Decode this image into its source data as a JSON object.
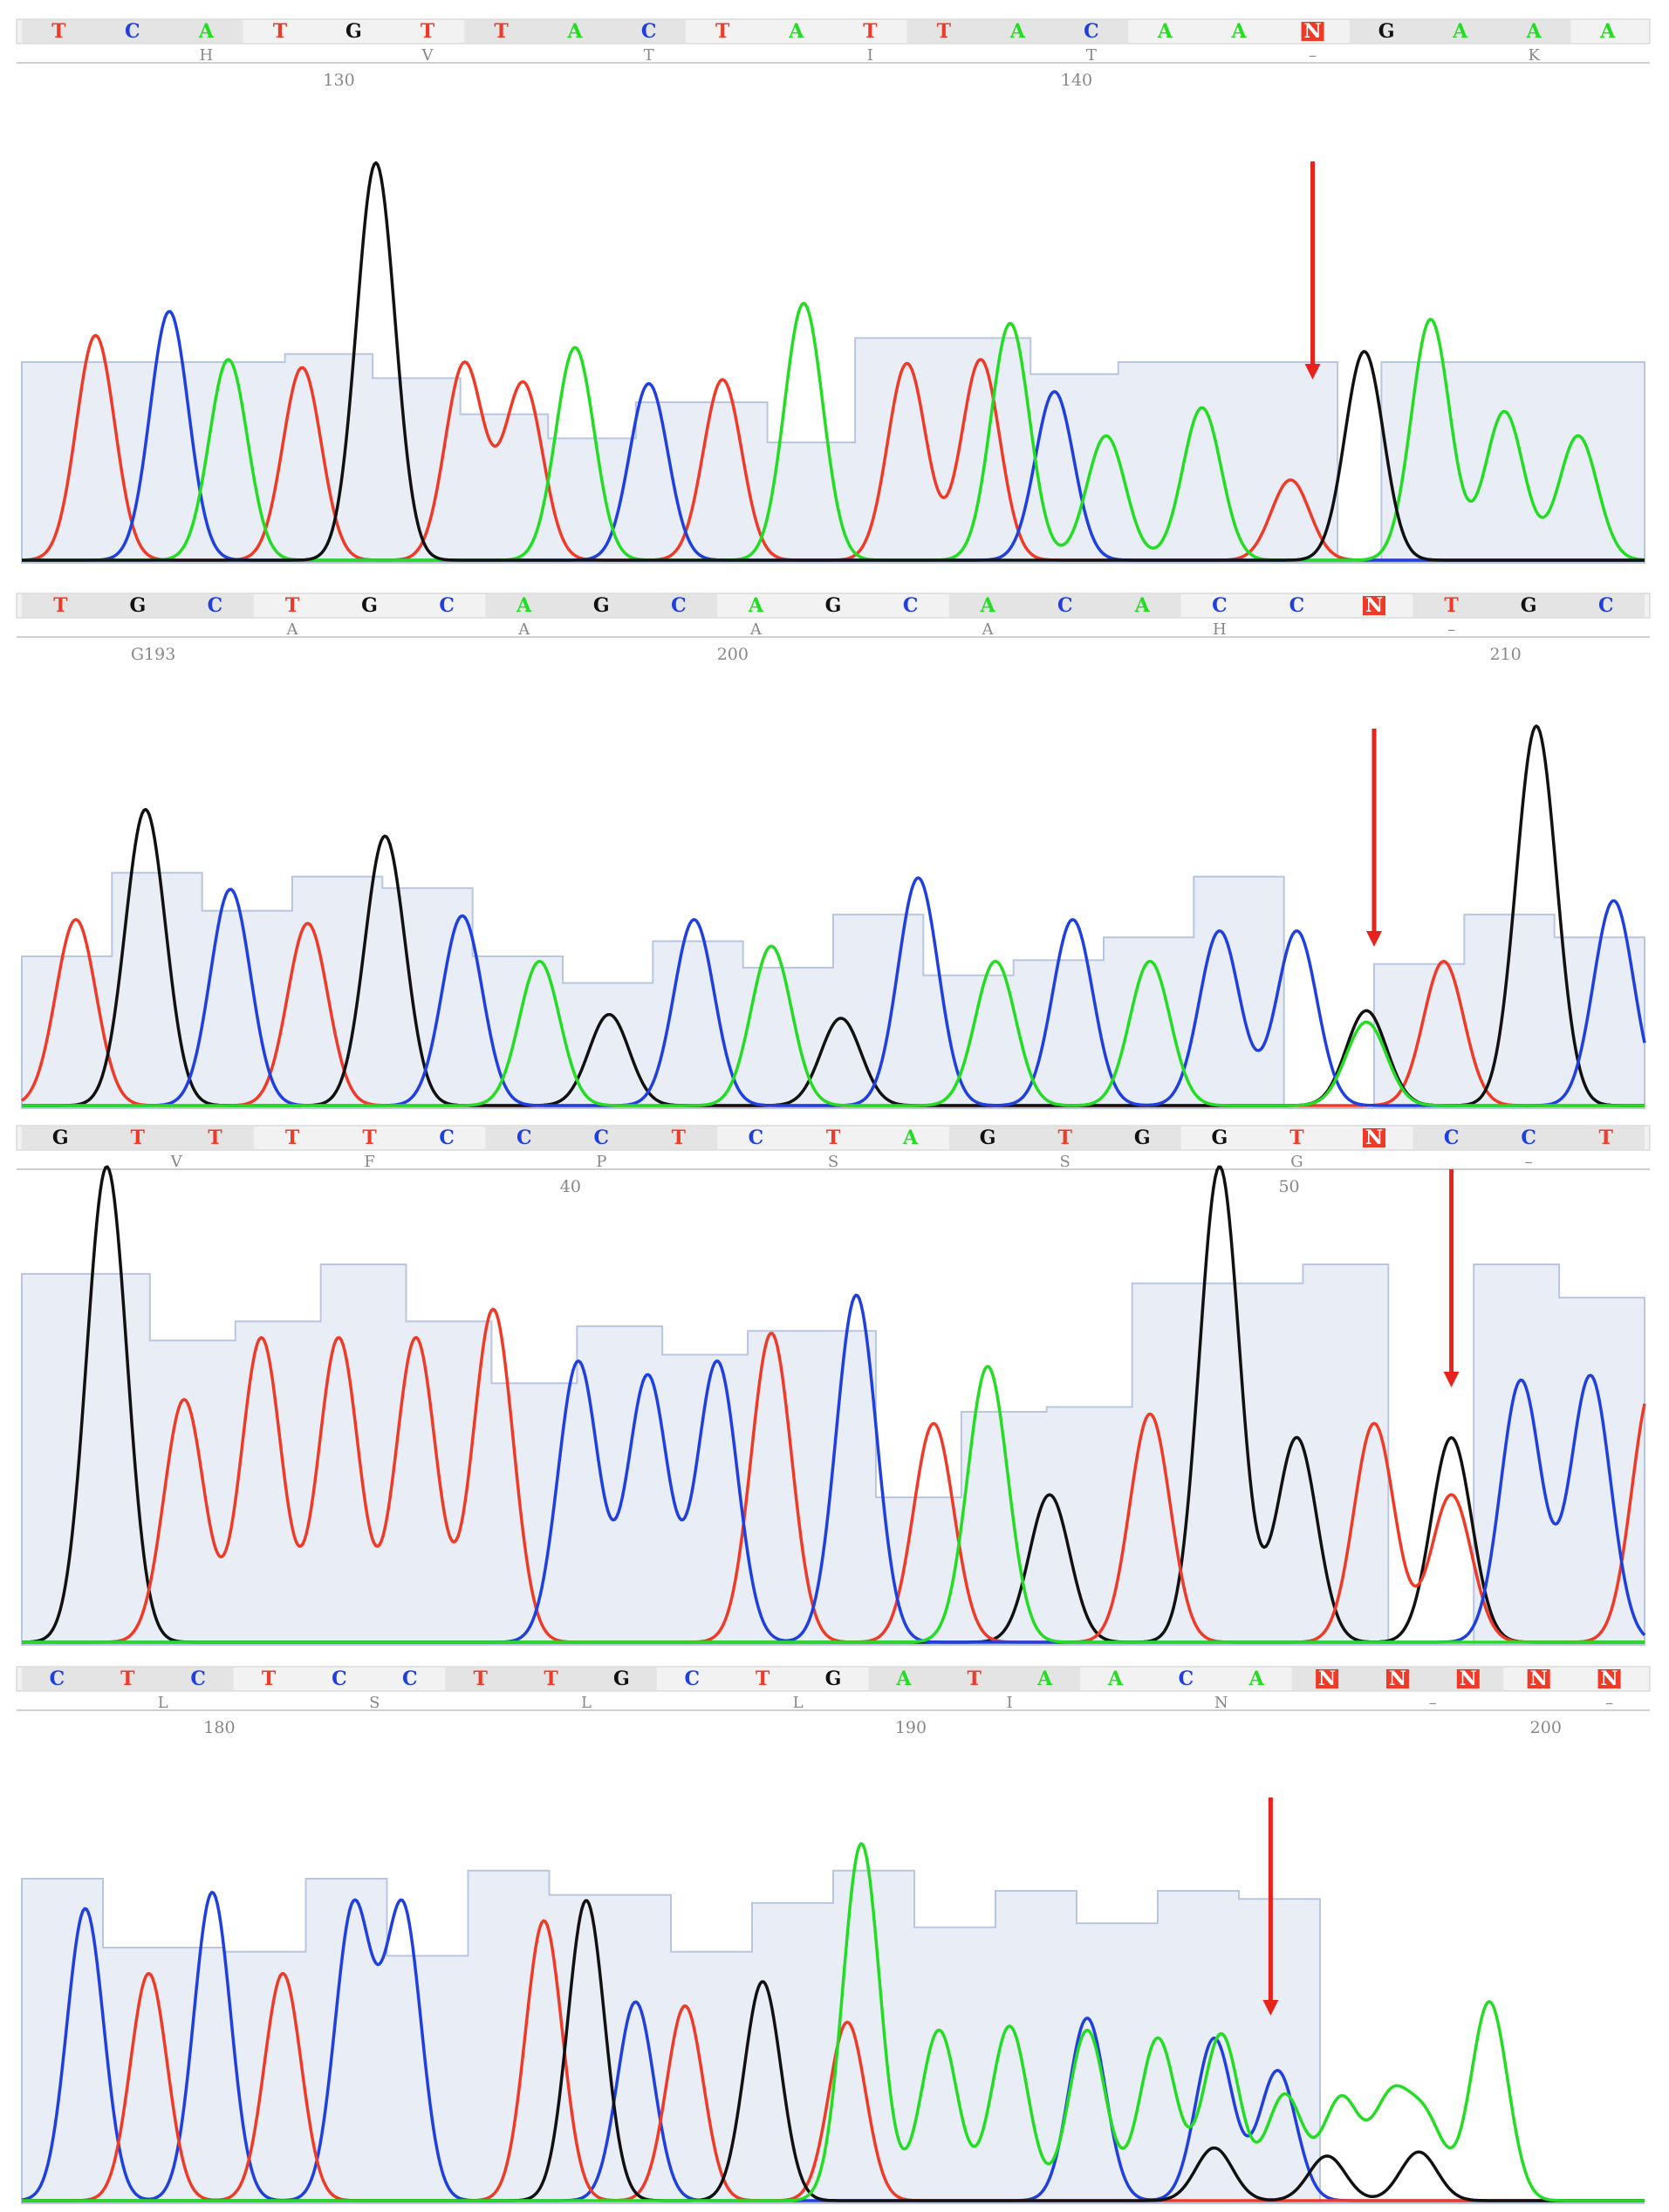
{
  "colors": {
    "A": "#22dd22",
    "C": "#1f3fdf",
    "G": "#111111",
    "T": "#f03a28",
    "N_fill": "#f03a28",
    "N_text": "#ffffff",
    "quality_fill": "#e9edf5",
    "quality_stroke": "#b9c6e2",
    "arrow": "#e8231b",
    "header_bg": "#f2f2f2",
    "header_alt_bg": "#e4e4e4",
    "label_text": "#888888"
  },
  "chart_data": [
    {
      "type": "line",
      "panel": "1",
      "bases": [
        "T",
        "C",
        "A",
        "T",
        "G",
        "T",
        "T",
        "A",
        "C",
        "T",
        "A",
        "T",
        "T",
        "A",
        "C",
        "A",
        "A",
        "N",
        "G",
        "A",
        "A",
        "A"
      ],
      "aa": [
        {
          "base_index": 2,
          "aa": "H"
        },
        {
          "base_index": 5,
          "aa": "V"
        },
        {
          "base_index": 8,
          "aa": "T"
        },
        {
          "base_index": 11,
          "aa": "I"
        },
        {
          "base_index": 14,
          "aa": "T"
        },
        {
          "base_index": 17,
          "aa": "–"
        },
        {
          "base_index": 20,
          "aa": "K"
        }
      ],
      "ticks": [
        {
          "base_index": 3.8,
          "label": "130"
        },
        {
          "base_index": 13.8,
          "label": "140"
        }
      ],
      "quality": [
        50,
        50,
        50,
        50,
        50,
        50,
        52,
        52,
        46,
        46,
        37,
        37,
        31,
        31,
        40,
        40,
        40,
        30,
        30,
        56,
        56,
        56,
        56,
        47,
        47,
        50,
        50,
        50,
        50,
        50,
        0,
        50,
        50,
        50,
        50,
        50,
        50
      ],
      "series": [
        {
          "base": "T",
          "peaks": [
            [
              0.5,
              56
            ],
            [
              3.3,
              48
            ],
            [
              5.5,
              49
            ],
            [
              6.3,
              44
            ],
            [
              9,
              45
            ],
            [
              11.5,
              49
            ],
            [
              12.5,
              50
            ],
            [
              16.7,
              20
            ]
          ]
        },
        {
          "base": "C",
          "peaks": [
            [
              1.5,
              62
            ],
            [
              8,
              44
            ],
            [
              13.5,
              42
            ]
          ]
        },
        {
          "base": "A",
          "peaks": [
            [
              2.3,
              50
            ],
            [
              7,
              53
            ],
            [
              10.1,
              64
            ],
            [
              12.9,
              59
            ],
            [
              14.2,
              31
            ],
            [
              15.5,
              38
            ],
            [
              18.6,
              60
            ],
            [
              19.6,
              37
            ],
            [
              20.6,
              31
            ]
          ]
        },
        {
          "base": "G",
          "peaks": [
            [
              4.3,
              99
            ],
            [
              17.7,
              52
            ]
          ]
        }
      ],
      "arrow_base_index": 17
    },
    {
      "type": "line",
      "panel": "2",
      "bases": [
        "T",
        "G",
        "C",
        "T",
        "G",
        "C",
        "A",
        "G",
        "C",
        "A",
        "G",
        "C",
        "A",
        "C",
        "A",
        "C",
        "C",
        "N",
        "T",
        "G",
        "C"
      ],
      "aa": [
        {
          "base_index": 3,
          "aa": "A"
        },
        {
          "base_index": 6,
          "aa": "A"
        },
        {
          "base_index": 9,
          "aa": "A"
        },
        {
          "base_index": 12,
          "aa": "A"
        },
        {
          "base_index": 15,
          "aa": "H"
        },
        {
          "base_index": 18,
          "aa": "–"
        },
        {
          "base_index": 21,
          "aa": "–"
        }
      ],
      "ticks": [
        {
          "base_index": 1.2,
          "label": "G193"
        },
        {
          "base_index": 8.7,
          "label": "200"
        },
        {
          "base_index": 18.7,
          "label": "210"
        }
      ],
      "quality": [
        40,
        40,
        62,
        62,
        52,
        52,
        61,
        61,
        58,
        58,
        40,
        40,
        33,
        33,
        44,
        44,
        37,
        37,
        51,
        51,
        35,
        35,
        39,
        39,
        45,
        45,
        61,
        61,
        0,
        0,
        38,
        38,
        51,
        51,
        45,
        45
      ],
      "series": [
        {
          "base": "T",
          "peaks": [
            [
              0.2,
              49
            ],
            [
              3.2,
              48
            ],
            [
              17.9,
              38
            ]
          ]
        },
        {
          "base": "G",
          "peaks": [
            [
              1.1,
              78
            ],
            [
              4.2,
              71
            ],
            [
              7.1,
              24
            ],
            [
              10.1,
              23
            ],
            [
              16.9,
              25
            ],
            [
              19.1,
              100
            ]
          ]
        },
        {
          "base": "C",
          "peaks": [
            [
              2.2,
              57
            ],
            [
              5.2,
              50
            ],
            [
              8.2,
              49
            ],
            [
              11.1,
              60
            ],
            [
              13.1,
              49
            ],
            [
              15.0,
              46
            ],
            [
              16.0,
              46
            ],
            [
              20.1,
              54
            ]
          ]
        },
        {
          "base": "A",
          "peaks": [
            [
              6.2,
              38
            ],
            [
              9.2,
              42
            ],
            [
              12.1,
              38
            ],
            [
              14.1,
              38
            ],
            [
              16.9,
              22
            ]
          ]
        }
      ],
      "arrow_base_index": 17
    },
    {
      "type": "line",
      "panel": "3",
      "bases": [
        "G",
        "T",
        "T",
        "T",
        "T",
        "C",
        "C",
        "C",
        "T",
        "C",
        "T",
        "A",
        "G",
        "T",
        "G",
        "G",
        "T",
        "N",
        "C",
        "C",
        "T"
      ],
      "aa": [
        {
          "base_index": 1.5,
          "aa": "V"
        },
        {
          "base_index": 4,
          "aa": "F"
        },
        {
          "base_index": 7,
          "aa": "P"
        },
        {
          "base_index": 10,
          "aa": "S"
        },
        {
          "base_index": 13,
          "aa": "S"
        },
        {
          "base_index": 16,
          "aa": "G"
        },
        {
          "base_index": 19,
          "aa": "–"
        }
      ],
      "ticks": [
        {
          "base_index": 6.6,
          "label": "40"
        },
        {
          "base_index": 15.9,
          "label": "50"
        }
      ],
      "quality": [
        78,
        78,
        78,
        64,
        64,
        68,
        68,
        80,
        80,
        68,
        68,
        55,
        55,
        67,
        67,
        61,
        61,
        66,
        66,
        66,
        31,
        31,
        49,
        49,
        50,
        50,
        76,
        76,
        76,
        76,
        80,
        80,
        0,
        0,
        80,
        80,
        73,
        73
      ],
      "series": [
        {
          "base": "G",
          "peaks": [
            [
              0.6,
              100
            ],
            [
              12.8,
              31
            ],
            [
              15.0,
              100
            ],
            [
              16.0,
              43
            ],
            [
              18.0,
              43
            ]
          ]
        },
        {
          "base": "T",
          "peaks": [
            [
              1.6,
              51
            ],
            [
              2.6,
              64
            ],
            [
              3.6,
              64
            ],
            [
              4.6,
              64
            ],
            [
              5.6,
              70
            ],
            [
              9.2,
              65
            ],
            [
              11.3,
              46
            ],
            [
              14.1,
              48
            ],
            [
              17.0,
              46
            ],
            [
              18.0,
              31
            ],
            [
              20.6,
              54
            ]
          ]
        },
        {
          "base": "C",
          "peaks": [
            [
              6.7,
              59
            ],
            [
              7.6,
              56
            ],
            [
              8.5,
              59
            ],
            [
              10.3,
              73
            ],
            [
              18.9,
              55
            ],
            [
              19.8,
              56
            ]
          ]
        },
        {
          "base": "A",
          "peaks": [
            [
              12.0,
              58
            ]
          ]
        }
      ],
      "arrow_base_index": 18
    },
    {
      "type": "line",
      "panel": "4",
      "bases": [
        "C",
        "T",
        "C",
        "T",
        "C",
        "C",
        "T",
        "T",
        "G",
        "C",
        "T",
        "G",
        "A",
        "T",
        "A",
        "A",
        "C",
        "A",
        "N",
        "N",
        "N",
        "N",
        "N"
      ],
      "aa": [
        {
          "base_index": 1.5,
          "aa": "L"
        },
        {
          "base_index": 4.5,
          "aa": "S"
        },
        {
          "base_index": 7.5,
          "aa": "L"
        },
        {
          "base_index": 10.5,
          "aa": "L"
        },
        {
          "base_index": 13.5,
          "aa": "I"
        },
        {
          "base_index": 16.5,
          "aa": "N"
        },
        {
          "base_index": 19.5,
          "aa": "–"
        },
        {
          "base_index": 22.0,
          "aa": "–"
        }
      ],
      "ticks": [
        {
          "base_index": 2.3,
          "label": "180"
        },
        {
          "base_index": 12.1,
          "label": "190"
        },
        {
          "base_index": 21.1,
          "label": "200"
        }
      ],
      "quality": [
        80,
        80,
        63,
        63,
        63,
        62,
        62,
        80,
        80,
        61,
        61,
        82,
        82,
        76,
        76,
        76,
        62,
        62,
        74,
        74,
        82,
        82,
        68,
        68,
        77,
        77,
        69,
        69,
        77,
        77,
        75,
        75,
        0,
        0,
        0,
        0,
        0,
        0,
        0,
        0
      ],
      "series": [
        {
          "base": "C",
          "peaks": [
            [
              0.4,
              72
            ],
            [
              2.2,
              76
            ],
            [
              4.2,
              72
            ],
            [
              4.9,
              72
            ],
            [
              8.2,
              49
            ],
            [
              14.6,
              45
            ],
            [
              16.4,
              40
            ],
            [
              17.3,
              32
            ]
          ]
        },
        {
          "base": "T",
          "peaks": [
            [
              1.3,
              56
            ],
            [
              3.2,
              56
            ],
            [
              6.9,
              69
            ],
            [
              8.9,
              48
            ],
            [
              11.2,
              44
            ]
          ]
        },
        {
          "base": "G",
          "peaks": [
            [
              7.5,
              74
            ],
            [
              10.0,
              54
            ],
            [
              16.4,
              13
            ],
            [
              18.0,
              11
            ],
            [
              19.3,
              12
            ]
          ]
        },
        {
          "base": "A",
          "peaks": [
            [
              11.4,
              88
            ],
            [
              12.5,
              42
            ],
            [
              13.5,
              43
            ],
            [
              14.6,
              42
            ],
            [
              15.6,
              40
            ],
            [
              16.5,
              41
            ],
            [
              17.4,
              26
            ],
            [
              18.2,
              25
            ],
            [
              18.9,
              24
            ],
            [
              19.4,
              19
            ],
            [
              20.3,
              49
            ]
          ]
        }
      ],
      "arrow_base_index": 17.2
    }
  ]
}
